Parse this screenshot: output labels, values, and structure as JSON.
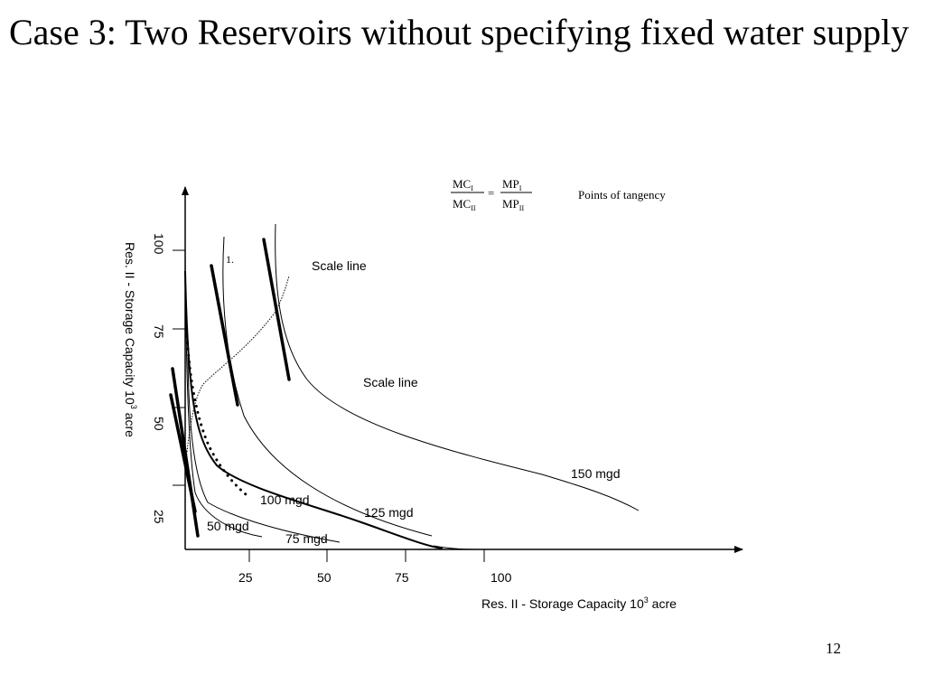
{
  "slide": {
    "title": "Case 3: Two Reservoirs without specifying fixed water supply",
    "page_number": "12"
  },
  "diagram": {
    "x_axis_label": "Res. II - Storage Capacity 10",
    "x_axis_label_sup": "3",
    "x_axis_label_tail": " acre",
    "y_axis_label": "Res. II - Storage Capacity 10",
    "y_axis_label_sup": "3",
    "y_axis_label_tail": " acre",
    "x_ticks": [
      "25",
      "50",
      "75",
      "100"
    ],
    "y_ticks": [
      "25",
      "50",
      "75",
      "100"
    ],
    "equation": {
      "mc_num": "MC",
      "mc_num_sub": "I",
      "mc_den": "MC",
      "mc_den_sub": "II",
      "equals": "=",
      "mp_num": "MP",
      "mp_num_sub": "I",
      "mp_den": "MP",
      "mp_den_sub": "II"
    },
    "points_of_tangency_label": "Points of tangency",
    "marker_1": "1.",
    "scale_line_upper": "Scale line",
    "scale_line_lower": "Scale line",
    "isoquants": {
      "mgd_50": "50 mgd",
      "mgd_75": "75 mgd",
      "mgd_100": "100 mgd",
      "mgd_125": "125 mgd",
      "mgd_150": "150 mgd"
    }
  }
}
